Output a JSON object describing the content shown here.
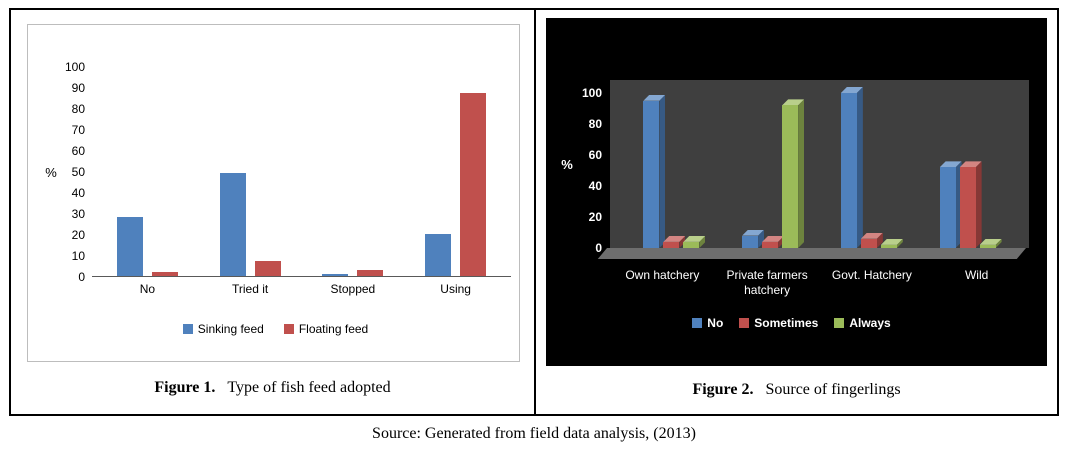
{
  "figures": {
    "fig1": {
      "label": "Figure 1.",
      "title": "Type of fish feed adopted"
    },
    "fig2": {
      "label": "Figure 2.",
      "title": "Source of fingerlings"
    }
  },
  "source_note": "Source: Generated from field data analysis, (2013)",
  "chart_data": [
    {
      "type": "bar",
      "title": "Type of fish feed adopted",
      "categories": [
        "No",
        "Tried it",
        "Stopped",
        "Using"
      ],
      "series": [
        {
          "name": "Sinking feed",
          "color": "#4f81bd",
          "values": [
            28,
            49,
            1,
            20
          ]
        },
        {
          "name": "Floating feed",
          "color": "#c0504d",
          "values": [
            2,
            7,
            3,
            87
          ]
        }
      ],
      "ylabel": "%",
      "ylim": [
        0,
        100
      ],
      "yticks": [
        0,
        10,
        20,
        30,
        40,
        50,
        60,
        70,
        80,
        90,
        100
      ],
      "grid": false,
      "legend_position": "bottom",
      "background": "#ffffff"
    },
    {
      "type": "bar-3d",
      "title": "Source of fingerlings",
      "categories": [
        "Own hatchery",
        "Private farmers hatchery",
        "Govt. Hatchery",
        "Wild"
      ],
      "series": [
        {
          "name": "No",
          "color": "#4f81bd",
          "values": [
            95,
            8,
            100,
            52
          ]
        },
        {
          "name": "Sometimes",
          "color": "#c0504d",
          "values": [
            4,
            4,
            6,
            52
          ]
        },
        {
          "name": "Always",
          "color": "#9bbb59",
          "values": [
            4,
            92,
            2,
            2
          ]
        }
      ],
      "ylabel": "%",
      "ylim": [
        0,
        100
      ],
      "yticks": [
        0,
        20,
        40,
        60,
        80,
        100
      ],
      "grid": false,
      "legend_position": "bottom",
      "background": "#000000",
      "wall_color": "#3f3f3f",
      "floor_color": "#6e6e6e"
    }
  ]
}
